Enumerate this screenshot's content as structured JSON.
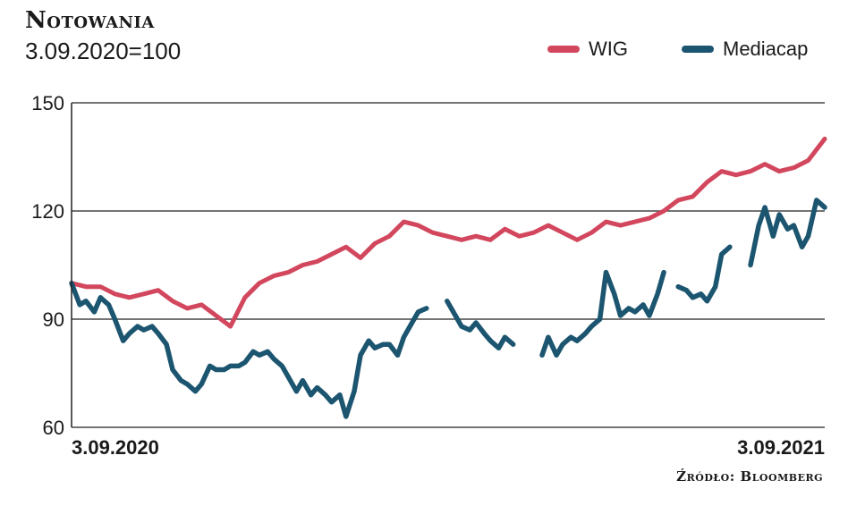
{
  "chart_data": {
    "type": "line",
    "title": "Notowania",
    "subtitle": "3.09.2020=100",
    "source": "Źródło: Bloomberg",
    "x_tick_labels": [
      "3.09.2020",
      "3.09.2021"
    ],
    "x_range": [
      "2020-09-03",
      "2021-09-03"
    ],
    "ylim": [
      60,
      150
    ],
    "yticks": [
      60,
      90,
      120,
      150
    ],
    "grid": "horizontal",
    "legend_position": "top-right",
    "series": [
      {
        "name": "WIG",
        "color": "#d2475d",
        "points": [
          [
            "2020-09-03",
            100
          ],
          [
            "2020-09-10",
            99
          ],
          [
            "2020-09-17",
            99
          ],
          [
            "2020-09-24",
            97
          ],
          [
            "2020-10-01",
            96
          ],
          [
            "2020-10-08",
            97
          ],
          [
            "2020-10-15",
            98
          ],
          [
            "2020-10-22",
            95
          ],
          [
            "2020-10-29",
            93
          ],
          [
            "2020-11-05",
            94
          ],
          [
            "2020-11-12",
            91
          ],
          [
            "2020-11-19",
            88
          ],
          [
            "2020-11-26",
            96
          ],
          [
            "2020-12-03",
            100
          ],
          [
            "2020-12-10",
            102
          ],
          [
            "2020-12-17",
            103
          ],
          [
            "2020-12-24",
            105
          ],
          [
            "2020-12-31",
            106
          ],
          [
            "2021-01-07",
            108
          ],
          [
            "2021-01-14",
            110
          ],
          [
            "2021-01-21",
            107
          ],
          [
            "2021-01-28",
            111
          ],
          [
            "2021-02-04",
            113
          ],
          [
            "2021-02-11",
            117
          ],
          [
            "2021-02-18",
            116
          ],
          [
            "2021-02-25",
            114
          ],
          [
            "2021-03-04",
            113
          ],
          [
            "2021-03-11",
            112
          ],
          [
            "2021-03-18",
            113
          ],
          [
            "2021-03-25",
            112
          ],
          [
            "2021-04-01",
            115
          ],
          [
            "2021-04-08",
            113
          ],
          [
            "2021-04-15",
            114
          ],
          [
            "2021-04-22",
            116
          ],
          [
            "2021-04-29",
            114
          ],
          [
            "2021-05-06",
            112
          ],
          [
            "2021-05-13",
            114
          ],
          [
            "2021-05-20",
            117
          ],
          [
            "2021-05-27",
            116
          ],
          [
            "2021-06-03",
            117
          ],
          [
            "2021-06-10",
            118
          ],
          [
            "2021-06-17",
            120
          ],
          [
            "2021-06-24",
            123
          ],
          [
            "2021-07-01",
            124
          ],
          [
            "2021-07-08",
            128
          ],
          [
            "2021-07-15",
            131
          ],
          [
            "2021-07-22",
            130
          ],
          [
            "2021-07-29",
            131
          ],
          [
            "2021-08-05",
            133
          ],
          [
            "2021-08-12",
            131
          ],
          [
            "2021-08-19",
            132
          ],
          [
            "2021-08-26",
            134
          ],
          [
            "2021-09-03",
            140
          ]
        ]
      },
      {
        "name": "Mediacap",
        "color": "#1c5570",
        "points": [
          [
            "2020-09-03",
            100
          ],
          [
            "2020-09-07",
            94
          ],
          [
            "2020-09-10",
            95
          ],
          [
            "2020-09-14",
            92
          ],
          [
            "2020-09-17",
            96
          ],
          [
            "2020-09-21",
            94
          ],
          [
            "2020-09-24",
            90
          ],
          [
            "2020-09-28",
            84
          ],
          [
            "2020-10-01",
            86
          ],
          [
            "2020-10-05",
            88
          ],
          [
            "2020-10-08",
            87
          ],
          [
            "2020-10-12",
            88
          ],
          [
            "2020-10-15",
            86
          ],
          [
            "2020-10-19",
            83
          ],
          [
            "2020-10-22",
            76
          ],
          [
            "2020-10-26",
            73
          ],
          [
            "2020-10-29",
            72
          ],
          [
            "2020-11-02",
            70
          ],
          [
            "2020-11-05",
            72
          ],
          [
            "2020-11-09",
            77
          ],
          [
            "2020-11-12",
            76
          ],
          [
            "2020-11-16",
            76
          ],
          [
            "2020-11-19",
            77
          ],
          [
            "2020-11-23",
            77
          ],
          [
            "2020-11-26",
            78
          ],
          [
            "2020-11-30",
            81
          ],
          [
            "2020-12-03",
            80
          ],
          [
            "2020-12-07",
            81
          ],
          [
            "2020-12-10",
            79
          ],
          [
            "2020-12-14",
            77
          ],
          [
            "2020-12-17",
            74
          ],
          [
            "2020-12-21",
            70
          ],
          [
            "2020-12-24",
            73
          ],
          [
            "2020-12-28",
            69
          ],
          [
            "2020-12-31",
            71
          ],
          [
            "2021-01-04",
            69
          ],
          [
            "2021-01-07",
            67
          ],
          [
            "2021-01-11",
            69
          ],
          [
            "2021-01-14",
            63
          ],
          [
            "2021-01-18",
            70
          ],
          [
            "2021-01-21",
            80
          ],
          [
            "2021-01-25",
            84
          ],
          [
            "2021-01-28",
            82
          ],
          [
            "2021-02-01",
            83
          ],
          [
            "2021-02-04",
            83
          ],
          [
            "2021-02-08",
            80
          ],
          [
            "2021-02-11",
            85
          ],
          [
            "2021-02-15",
            89
          ],
          [
            "2021-02-18",
            92
          ],
          [
            "2021-02-22",
            93
          ],
          [
            "2021-02-25",
            null
          ],
          [
            "2021-03-04",
            95
          ],
          [
            "2021-03-08",
            91
          ],
          [
            "2021-03-11",
            88
          ],
          [
            "2021-03-15",
            87
          ],
          [
            "2021-03-18",
            89
          ],
          [
            "2021-03-22",
            86
          ],
          [
            "2021-03-25",
            84
          ],
          [
            "2021-03-29",
            82
          ],
          [
            "2021-04-01",
            85
          ],
          [
            "2021-04-05",
            83
          ],
          [
            "2021-04-08",
            null
          ],
          [
            "2021-04-19",
            80
          ],
          [
            "2021-04-22",
            85
          ],
          [
            "2021-04-26",
            80
          ],
          [
            "2021-04-29",
            83
          ],
          [
            "2021-05-03",
            85
          ],
          [
            "2021-05-06",
            84
          ],
          [
            "2021-05-10",
            86
          ],
          [
            "2021-05-13",
            88
          ],
          [
            "2021-05-17",
            90
          ],
          [
            "2021-05-20",
            103
          ],
          [
            "2021-05-24",
            97
          ],
          [
            "2021-05-27",
            91
          ],
          [
            "2021-05-31",
            93
          ],
          [
            "2021-06-03",
            92
          ],
          [
            "2021-06-07",
            94
          ],
          [
            "2021-06-10",
            91
          ],
          [
            "2021-06-14",
            97
          ],
          [
            "2021-06-17",
            103
          ],
          [
            "2021-06-21",
            null
          ],
          [
            "2021-06-24",
            99
          ],
          [
            "2021-06-28",
            98
          ],
          [
            "2021-07-01",
            96
          ],
          [
            "2021-07-05",
            97
          ],
          [
            "2021-07-08",
            95
          ],
          [
            "2021-07-12",
            99
          ],
          [
            "2021-07-15",
            108
          ],
          [
            "2021-07-19",
            110
          ],
          [
            "2021-07-22",
            null
          ],
          [
            "2021-07-29",
            105
          ],
          [
            "2021-08-02",
            116
          ],
          [
            "2021-08-05",
            121
          ],
          [
            "2021-08-09",
            113
          ],
          [
            "2021-08-12",
            119
          ],
          [
            "2021-08-16",
            115
          ],
          [
            "2021-08-19",
            116
          ],
          [
            "2021-08-23",
            110
          ],
          [
            "2021-08-26",
            113
          ],
          [
            "2021-08-30",
            123
          ],
          [
            "2021-09-03",
            121
          ]
        ]
      }
    ]
  }
}
